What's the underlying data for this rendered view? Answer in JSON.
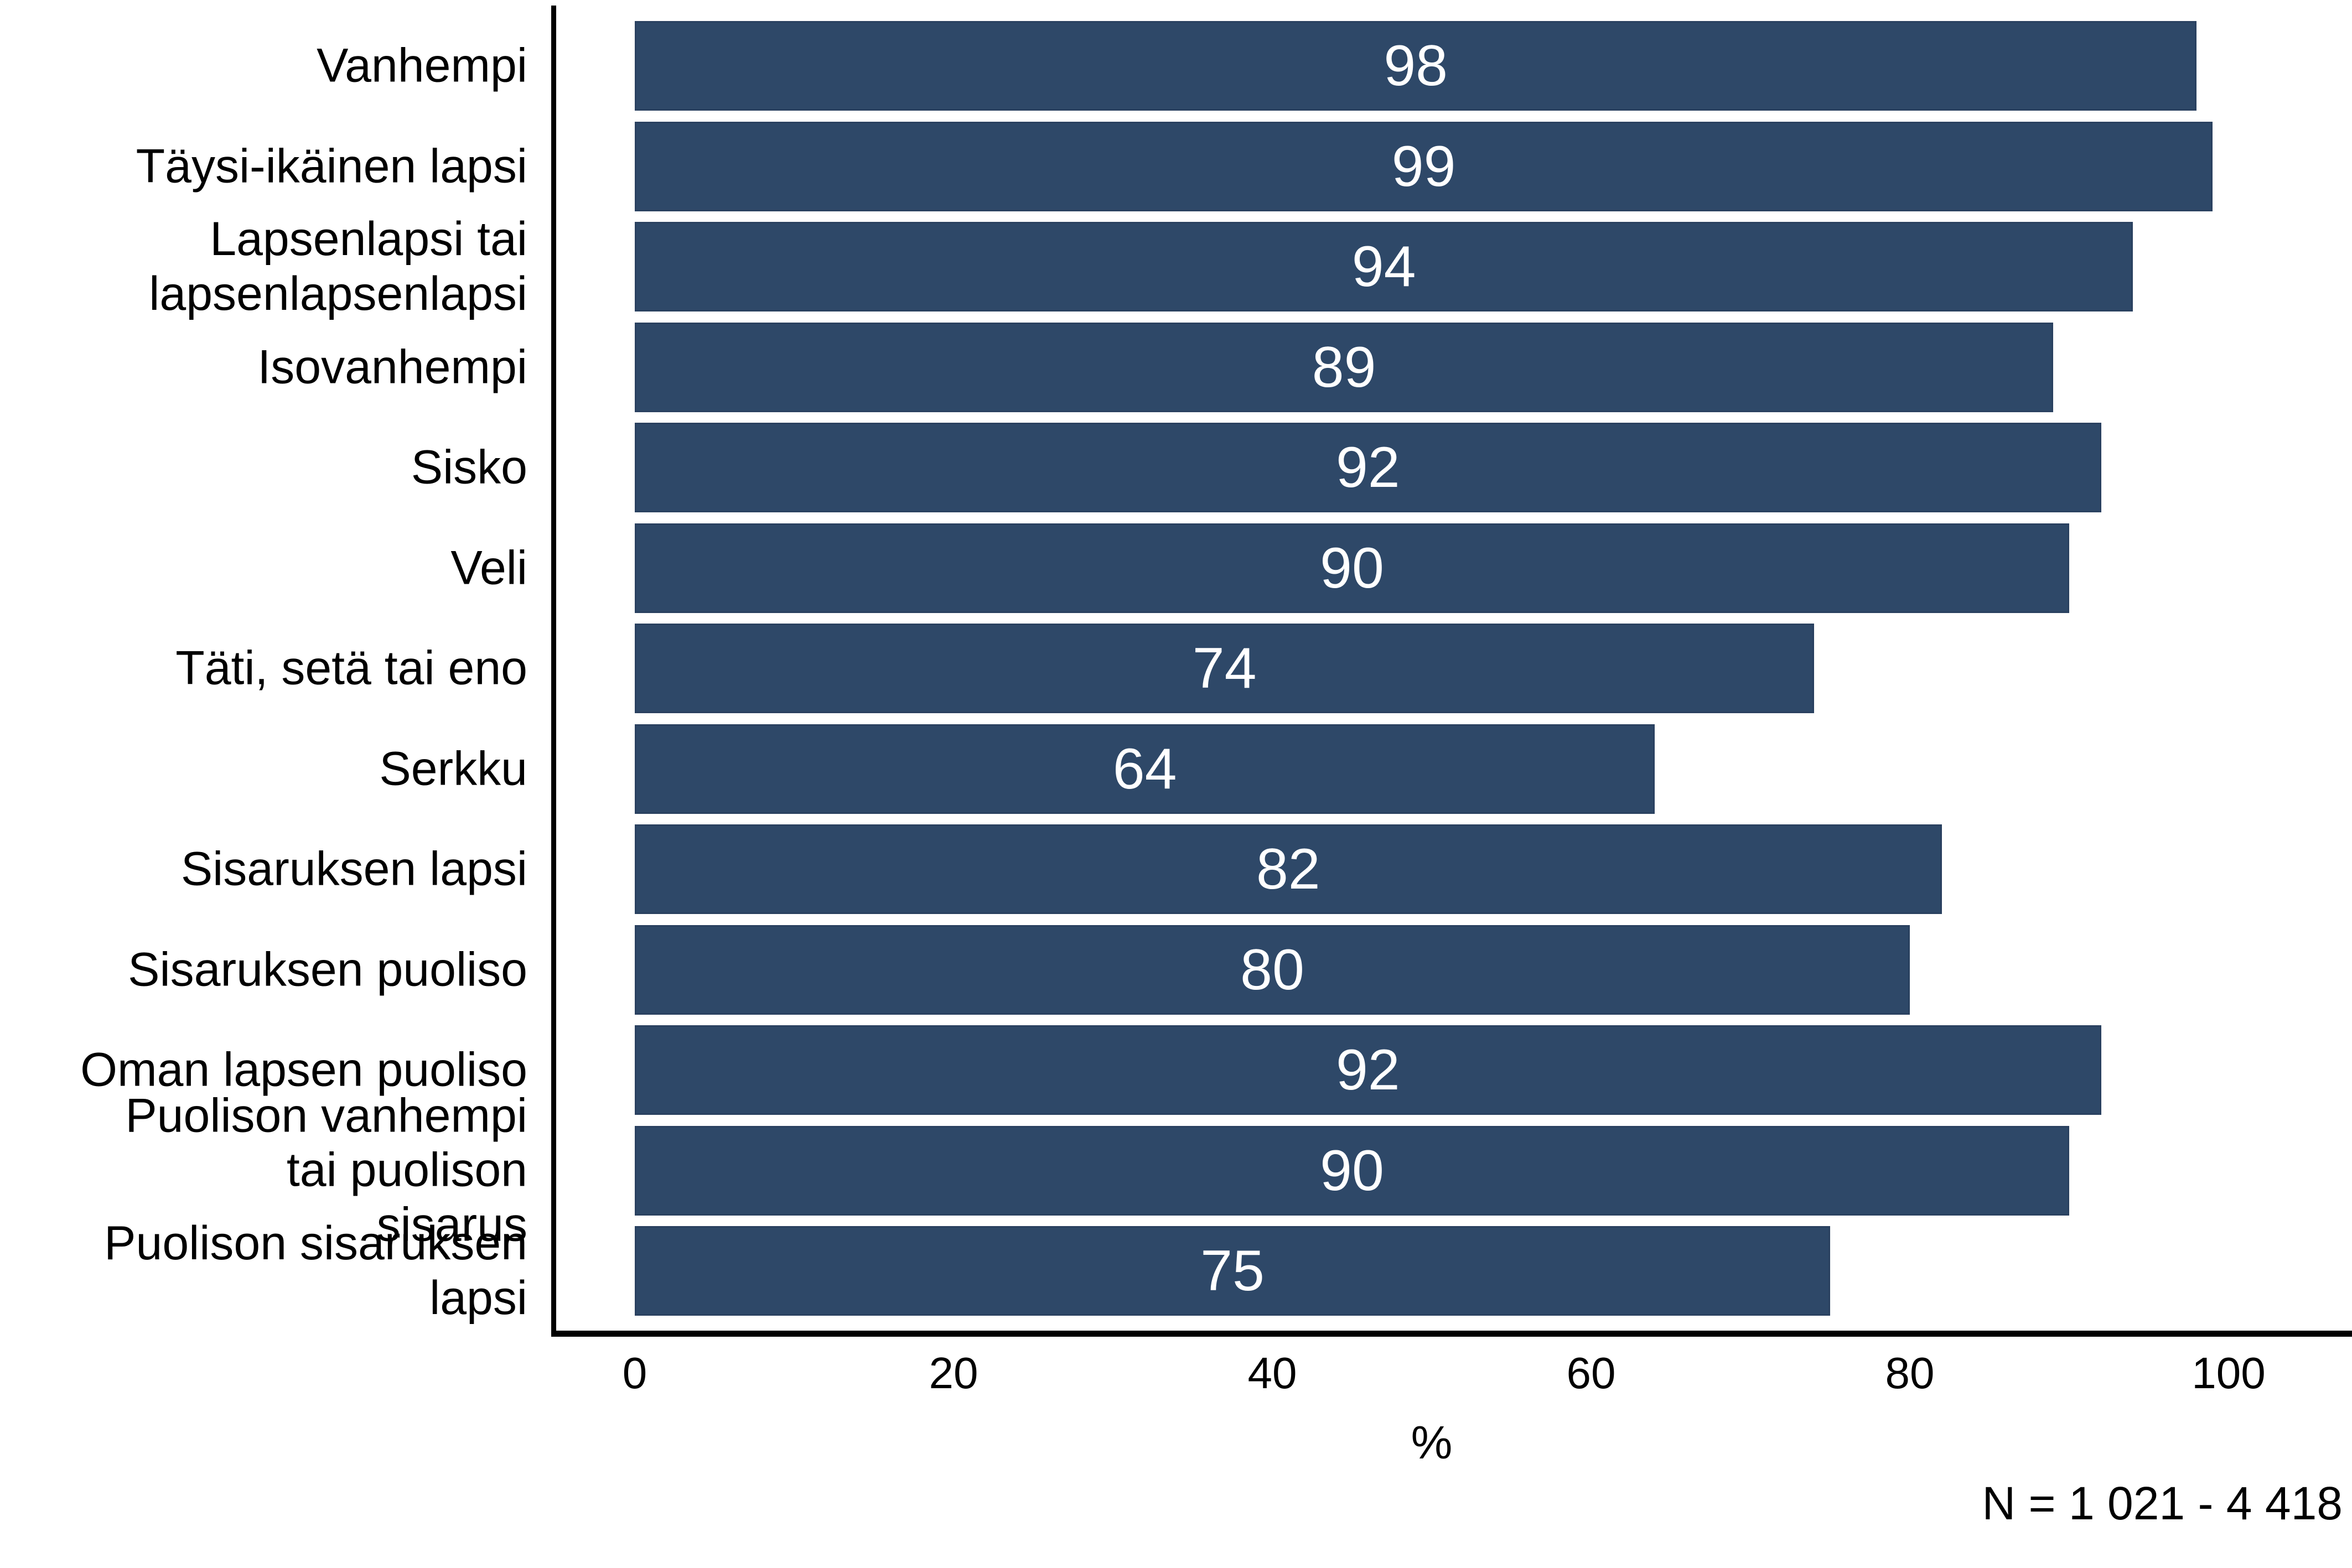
{
  "chart_data": {
    "type": "bar",
    "orientation": "horizontal",
    "title": "",
    "categories": [
      "Vanhempi",
      "Täysi-ikäinen lapsi",
      "Lapsenlapsi tai\nlapsenlapsenlapsi",
      "Isovanhempi",
      "Sisko",
      "Veli",
      "Täti, setä tai eno",
      "Serkku",
      "Sisaruksen lapsi",
      "Sisaruksen puoliso",
      "Oman lapsen puoliso",
      "Puolison vanhempi\ntai puolison\nsisarus",
      "Puolison sisaruksen\nlapsi"
    ],
    "values": [
      98,
      99,
      94,
      89,
      92,
      90,
      74,
      64,
      82,
      80,
      92,
      90,
      75
    ],
    "x_ticks": [
      0,
      20,
      40,
      60,
      80,
      100
    ],
    "xlim": [
      0,
      100
    ],
    "xlabel": "%",
    "ylabel": "",
    "note": "N = 1 021 - 4 418",
    "grid": false,
    "legend_position": "none",
    "bar_color": "#2E4868",
    "bar_border_color": "#2A4160",
    "value_label_color": "#FFFFFF",
    "axis_color": "#000000",
    "text_color": "#000000",
    "background_color": "#FFFFFF"
  }
}
